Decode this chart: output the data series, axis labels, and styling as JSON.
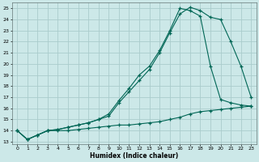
{
  "xlabel": "Humidex (Indice chaleur)",
  "xlim": [
    -0.5,
    23.5
  ],
  "ylim": [
    12.8,
    25.5
  ],
  "yticks": [
    13,
    14,
    15,
    16,
    17,
    18,
    19,
    20,
    21,
    22,
    23,
    24,
    25
  ],
  "xticks": [
    0,
    1,
    2,
    3,
    4,
    5,
    6,
    7,
    8,
    9,
    10,
    11,
    12,
    13,
    14,
    15,
    16,
    17,
    18,
    19,
    20,
    21,
    22,
    23
  ],
  "bg_color": "#cce8e8",
  "grid_color": "#aacccc",
  "line_color": "#006655",
  "line1_x": [
    0,
    1,
    2,
    3,
    4,
    5,
    6,
    7,
    8,
    9,
    10,
    11,
    12,
    13,
    14,
    15,
    16,
    17,
    18,
    19,
    20,
    21,
    22,
    23
  ],
  "line1_y": [
    14.0,
    13.2,
    13.6,
    14.0,
    14.0,
    14.0,
    14.1,
    14.2,
    14.3,
    14.4,
    14.5,
    14.5,
    14.6,
    14.7,
    14.8,
    15.0,
    15.2,
    15.5,
    15.7,
    15.8,
    15.9,
    16.0,
    16.1,
    16.2
  ],
  "line2_x": [
    0,
    1,
    2,
    3,
    4,
    5,
    6,
    7,
    8,
    9,
    10,
    11,
    12,
    13,
    14,
    15,
    16,
    17,
    18,
    19,
    20,
    21,
    22,
    23
  ],
  "line2_y": [
    14.0,
    13.2,
    13.6,
    14.0,
    14.1,
    14.3,
    14.5,
    14.7,
    15.0,
    15.3,
    16.5,
    17.5,
    18.5,
    19.5,
    21.0,
    22.8,
    24.5,
    25.1,
    24.8,
    24.2,
    24.0,
    22.0,
    19.8,
    17.0
  ],
  "line3_x": [
    0,
    1,
    2,
    3,
    4,
    5,
    6,
    7,
    8,
    9,
    10,
    11,
    12,
    13,
    14,
    15,
    16,
    17,
    18,
    19,
    20,
    21,
    22,
    23
  ],
  "line3_y": [
    14.0,
    13.2,
    13.6,
    14.0,
    14.1,
    14.3,
    14.5,
    14.7,
    15.0,
    15.5,
    16.7,
    17.8,
    19.0,
    19.8,
    21.2,
    23.0,
    25.0,
    24.8,
    24.3,
    19.8,
    16.8,
    16.5,
    16.3,
    16.2
  ]
}
